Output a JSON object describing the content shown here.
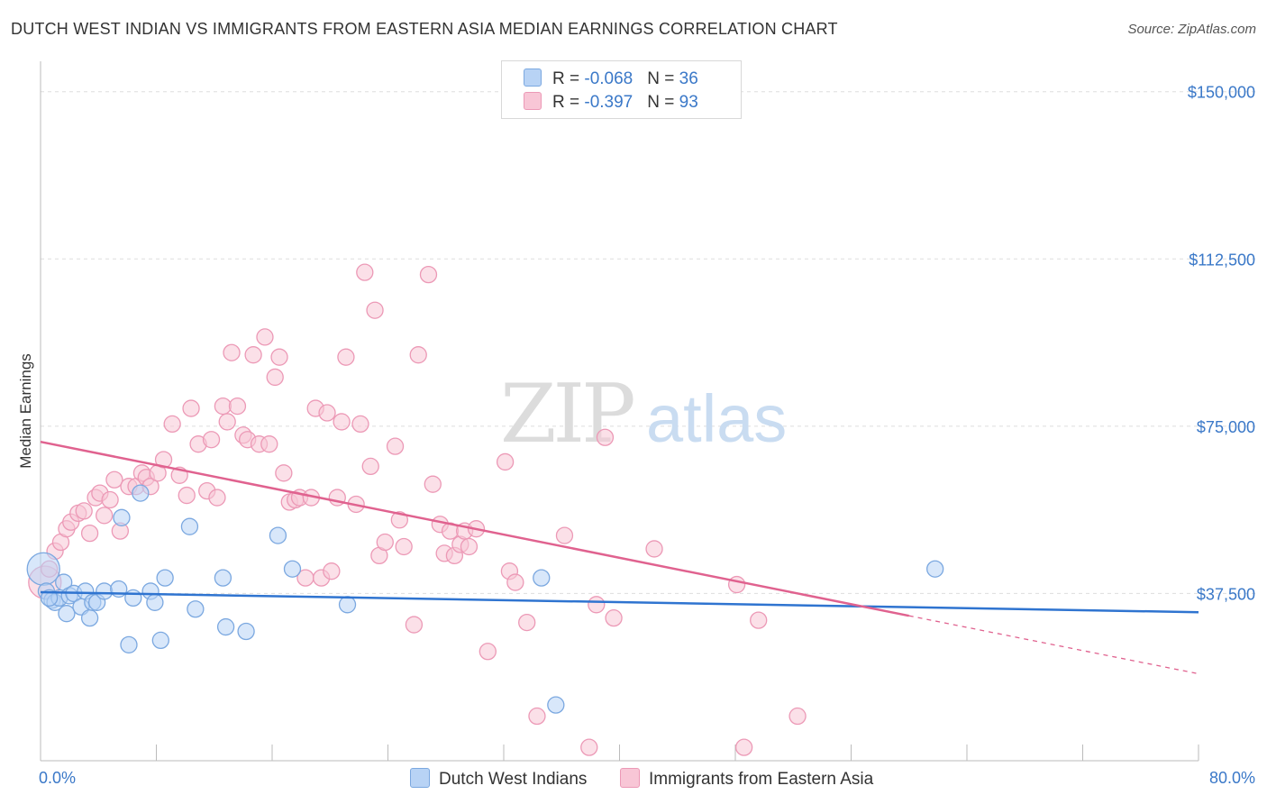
{
  "header": {
    "title": "DUTCH WEST INDIAN VS IMMIGRANTS FROM EASTERN ASIA MEDIAN EARNINGS CORRELATION CHART",
    "source": "Source: ZipAtlas.com"
  },
  "watermark": {
    "zip": "ZIP",
    "atlas": "atlas"
  },
  "legend": {
    "r_label": "R = ",
    "n_label": "N = ",
    "rows": [
      {
        "r": "-0.068",
        "n": "36"
      },
      {
        "r": "-0.397",
        "n": "93"
      }
    ]
  },
  "colors": {
    "blue_fill": "#b8d3f5",
    "blue_stroke": "#7ba8e0",
    "blue_line": "#2f74d0",
    "pink_fill": "#f8c6d6",
    "pink_stroke": "#ec99b6",
    "pink_line": "#e0628f",
    "tick_text": "#3a78c8",
    "grid": "#dedede"
  },
  "chart_data": {
    "type": "scatter",
    "title": "DUTCH WEST INDIAN VS IMMIGRANTS FROM EASTERN ASIA MEDIAN EARNINGS CORRELATION CHART",
    "xlabel": "",
    "ylabel": "Median Earnings",
    "xlim": [
      0,
      80
    ],
    "ylim": [
      0,
      155000
    ],
    "x_tick_labels": [
      "0.0%",
      "80.0%"
    ],
    "y_ticks": [
      37500,
      75000,
      112500,
      150000
    ],
    "y_tick_labels": [
      "$37,500",
      "$75,000",
      "$112,500",
      "$150,000"
    ],
    "grid": true,
    "legend_position": "bottom",
    "series": [
      {
        "name": "Dutch West Indians",
        "color": "#b8d3f5",
        "points": [
          [
            0.2,
            43000
          ],
          [
            0.4,
            38000
          ],
          [
            0.8,
            36000
          ],
          [
            1.0,
            35500
          ],
          [
            1.3,
            36500
          ],
          [
            1.6,
            40000
          ],
          [
            1.8,
            33000
          ],
          [
            2.0,
            37000
          ],
          [
            2.3,
            37500
          ],
          [
            2.8,
            34500
          ],
          [
            3.1,
            38000
          ],
          [
            3.4,
            32000
          ],
          [
            3.6,
            35500
          ],
          [
            3.9,
            35500
          ],
          [
            4.4,
            38000
          ],
          [
            5.4,
            38500
          ],
          [
            5.6,
            54500
          ],
          [
            6.1,
            26000
          ],
          [
            6.4,
            36500
          ],
          [
            6.9,
            60000
          ],
          [
            7.6,
            38000
          ],
          [
            7.9,
            35500
          ],
          [
            8.3,
            27000
          ],
          [
            8.6,
            41000
          ],
          [
            10.3,
            52500
          ],
          [
            10.7,
            34000
          ],
          [
            12.6,
            41000
          ],
          [
            12.8,
            30000
          ],
          [
            14.2,
            29000
          ],
          [
            16.4,
            50500
          ],
          [
            17.4,
            43000
          ],
          [
            21.2,
            35000
          ],
          [
            34.6,
            41000
          ],
          [
            35.6,
            12500
          ],
          [
            61.8,
            43000
          ],
          [
            0.6,
            36500
          ]
        ]
      },
      {
        "name": "Immigrants from Eastern Asia",
        "color": "#f8c6d6",
        "points": [
          [
            0.3,
            40000
          ],
          [
            0.6,
            43000
          ],
          [
            1.0,
            47000
          ],
          [
            1.4,
            49000
          ],
          [
            1.8,
            52000
          ],
          [
            2.1,
            53500
          ],
          [
            2.6,
            55500
          ],
          [
            3.0,
            56000
          ],
          [
            3.4,
            51000
          ],
          [
            3.8,
            59000
          ],
          [
            4.1,
            60000
          ],
          [
            4.4,
            55000
          ],
          [
            4.8,
            58500
          ],
          [
            5.1,
            63000
          ],
          [
            5.5,
            51500
          ],
          [
            6.1,
            61500
          ],
          [
            6.6,
            61500
          ],
          [
            7.0,
            64500
          ],
          [
            7.3,
            63500
          ],
          [
            7.6,
            61500
          ],
          [
            8.1,
            64500
          ],
          [
            8.5,
            67500
          ],
          [
            9.1,
            75500
          ],
          [
            9.6,
            64000
          ],
          [
            10.1,
            59500
          ],
          [
            10.4,
            79000
          ],
          [
            10.9,
            71000
          ],
          [
            11.5,
            60500
          ],
          [
            11.8,
            72000
          ],
          [
            12.2,
            59000
          ],
          [
            12.6,
            79500
          ],
          [
            12.9,
            76000
          ],
          [
            13.2,
            91500
          ],
          [
            13.6,
            79500
          ],
          [
            14.0,
            73000
          ],
          [
            14.3,
            72000
          ],
          [
            14.7,
            91000
          ],
          [
            15.1,
            71000
          ],
          [
            15.5,
            95000
          ],
          [
            15.8,
            71000
          ],
          [
            16.2,
            86000
          ],
          [
            16.5,
            90500
          ],
          [
            16.8,
            64500
          ],
          [
            17.2,
            58000
          ],
          [
            17.6,
            58500
          ],
          [
            17.9,
            59000
          ],
          [
            18.3,
            41000
          ],
          [
            18.7,
            59000
          ],
          [
            19.0,
            79000
          ],
          [
            19.4,
            41000
          ],
          [
            19.8,
            78000
          ],
          [
            20.1,
            42500
          ],
          [
            20.5,
            59000
          ],
          [
            20.8,
            76000
          ],
          [
            21.1,
            90500
          ],
          [
            21.8,
            57500
          ],
          [
            22.1,
            75500
          ],
          [
            22.4,
            109500
          ],
          [
            22.8,
            66000
          ],
          [
            23.1,
            101000
          ],
          [
            23.4,
            46000
          ],
          [
            23.8,
            49000
          ],
          [
            24.5,
            70500
          ],
          [
            24.8,
            54000
          ],
          [
            25.1,
            48000
          ],
          [
            25.8,
            30500
          ],
          [
            26.1,
            91000
          ],
          [
            26.8,
            109000
          ],
          [
            27.1,
            62000
          ],
          [
            27.6,
            53000
          ],
          [
            27.9,
            46500
          ],
          [
            28.3,
            51500
          ],
          [
            28.6,
            46000
          ],
          [
            29.0,
            48500
          ],
          [
            29.3,
            51500
          ],
          [
            29.6,
            48000
          ],
          [
            30.1,
            52000
          ],
          [
            30.9,
            24500
          ],
          [
            32.1,
            67000
          ],
          [
            32.4,
            42500
          ],
          [
            32.8,
            40000
          ],
          [
            33.6,
            31000
          ],
          [
            34.3,
            10000
          ],
          [
            36.2,
            50500
          ],
          [
            37.9,
            3000
          ],
          [
            38.4,
            35000
          ],
          [
            39.0,
            72500
          ],
          [
            39.6,
            32000
          ],
          [
            42.4,
            47500
          ],
          [
            48.1,
            39500
          ],
          [
            48.6,
            3000
          ],
          [
            49.6,
            31500
          ],
          [
            52.3,
            10000
          ]
        ]
      }
    ],
    "trend_lines": [
      {
        "series": "Dutch West Indians",
        "x": [
          0,
          80
        ],
        "y": [
          37800,
          33300
        ]
      },
      {
        "series": "Immigrants from Eastern Asia",
        "x": [
          0,
          60
        ],
        "y": [
          71500,
          32500
        ],
        "dashed_extension": {
          "x": [
            60,
            80
          ],
          "y": [
            32500,
            19500
          ]
        }
      }
    ]
  }
}
